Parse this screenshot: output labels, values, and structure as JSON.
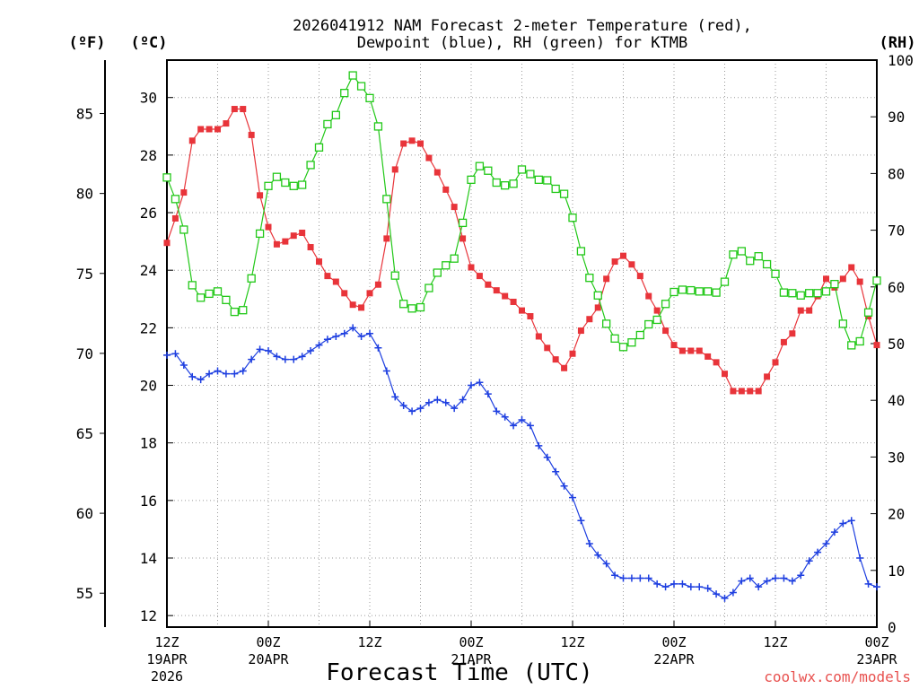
{
  "title_line1": "2026041912 NAM Forecast 2-meter Temperature (red),",
  "title_line2": "Dewpoint (blue), RH (green) for KTMB",
  "units": {
    "fahrenheit": "(ºF)",
    "celsius": "(ºC)",
    "rh": "(RH)"
  },
  "xlabel": "Forecast Time (UTC)",
  "credit": "coolwx.com/models",
  "colors": {
    "temperature": "#e8343a",
    "dewpoint": "#1e3fe0",
    "rh": "#22c818",
    "grid": "#9a9a9a"
  },
  "chart_data": {
    "type": "line",
    "x_unit": "hours since 2026-04-19 12Z",
    "x_range": [
      0,
      84
    ],
    "x_ticks": [
      {
        "x": 0,
        "time": "12Z",
        "date": "19APR",
        "year": "2026"
      },
      {
        "x": 12,
        "time": "00Z",
        "date": "20APR"
      },
      {
        "x": 24,
        "time": "12Z"
      },
      {
        "x": 36,
        "time": "00Z",
        "date": "21APR"
      },
      {
        "x": 48,
        "time": "12Z"
      },
      {
        "x": 60,
        "time": "00Z",
        "date": "22APR"
      },
      {
        "x": 72,
        "time": "12Z"
      },
      {
        "x": 84,
        "time": "00Z",
        "date": "23APR"
      }
    ],
    "y_celsius": {
      "range": [
        11.6,
        31.3
      ],
      "ticks": [
        12,
        14,
        16,
        18,
        20,
        22,
        24,
        26,
        28,
        30
      ]
    },
    "y_fahrenheit": {
      "ticks": [
        55,
        60,
        65,
        70,
        75,
        80,
        85
      ]
    },
    "y_rh": {
      "range": [
        0,
        100
      ],
      "ticks": [
        0,
        10,
        20,
        30,
        40,
        50,
        60,
        70,
        80,
        90,
        100
      ]
    },
    "grid": true,
    "series": [
      {
        "name": "Temperature",
        "color": "red",
        "axis": "celsius",
        "x": [
          0,
          1,
          2,
          3,
          4,
          5,
          6,
          7,
          8,
          9,
          10,
          11,
          12,
          13,
          14,
          15,
          16,
          17,
          18,
          19,
          20,
          21,
          22,
          23,
          24,
          25,
          26,
          27,
          28,
          29,
          30,
          31,
          32,
          33,
          34,
          35,
          36,
          37,
          38,
          39,
          40,
          41,
          42,
          43,
          44,
          45,
          46,
          47,
          48,
          49,
          50,
          51,
          52,
          53,
          54,
          55,
          56,
          57,
          58,
          59,
          60,
          61,
          62,
          63,
          64,
          65,
          66,
          67,
          68,
          69,
          70,
          71,
          72,
          73,
          74,
          75,
          76,
          77,
          78,
          79,
          80,
          81,
          82,
          83,
          84
        ],
        "values": [
          24.95,
          25.8,
          26.7,
          28.5,
          28.9,
          28.9,
          28.9,
          29.1,
          29.6,
          29.6,
          28.7,
          26.6,
          25.5,
          24.9,
          25.0,
          25.2,
          25.3,
          24.8,
          24.3,
          23.8,
          23.6,
          23.2,
          22.8,
          22.7,
          23.2,
          23.5,
          25.1,
          27.5,
          28.4,
          28.5,
          28.4,
          27.9,
          27.4,
          26.8,
          26.2,
          25.1,
          24.1,
          23.8,
          23.5,
          23.3,
          23.1,
          22.9,
          22.6,
          22.4,
          21.7,
          21.3,
          20.9,
          20.6,
          21.1,
          21.9,
          22.3,
          22.7,
          23.7,
          24.3,
          24.5,
          24.2,
          23.8,
          23.1,
          22.6,
          21.9,
          21.4,
          21.2,
          21.2,
          21.2,
          21.0,
          20.8,
          20.4,
          19.8,
          19.8,
          19.8,
          19.8,
          20.3,
          20.8,
          21.5,
          21.8,
          22.6,
          22.6,
          23.1,
          23.7,
          23.4,
          23.7,
          24.1,
          23.6,
          22.4,
          21.4
        ]
      },
      {
        "name": "Dewpoint",
        "color": "blue",
        "axis": "celsius",
        "x": [
          0,
          1,
          2,
          3,
          4,
          5,
          6,
          7,
          8,
          9,
          10,
          11,
          12,
          13,
          14,
          15,
          16,
          17,
          18,
          19,
          20,
          21,
          22,
          23,
          24,
          25,
          26,
          27,
          28,
          29,
          30,
          31,
          32,
          33,
          34,
          35,
          36,
          37,
          38,
          39,
          40,
          41,
          42,
          43,
          44,
          45,
          46,
          47,
          48,
          49,
          50,
          51,
          52,
          53,
          54,
          55,
          56,
          57,
          58,
          59,
          60,
          61,
          62,
          63,
          64,
          65,
          66,
          67,
          68,
          69,
          70,
          71,
          72,
          73,
          74,
          75,
          76,
          77,
          78,
          79,
          80,
          81,
          82,
          83,
          84
        ],
        "values": [
          21.05,
          21.1,
          20.7,
          20.3,
          20.2,
          20.4,
          20.5,
          20.4,
          20.4,
          20.5,
          20.9,
          21.25,
          21.2,
          21.0,
          20.9,
          20.9,
          21.0,
          21.2,
          21.4,
          21.6,
          21.7,
          21.8,
          22.0,
          21.7,
          21.8,
          21.3,
          20.5,
          19.6,
          19.3,
          19.1,
          19.2,
          19.4,
          19.5,
          19.4,
          19.2,
          19.5,
          20.0,
          20.1,
          19.7,
          19.1,
          18.9,
          18.6,
          18.8,
          18.6,
          17.9,
          17.5,
          17.0,
          16.5,
          16.1,
          15.3,
          14.5,
          14.1,
          13.8,
          13.4,
          13.3,
          13.3,
          13.3,
          13.3,
          13.1,
          13.0,
          13.1,
          13.1,
          13.0,
          13.0,
          12.95,
          12.75,
          12.6,
          12.8,
          13.2,
          13.3,
          13.0,
          13.2,
          13.3,
          13.3,
          13.2,
          13.4,
          13.9,
          14.2,
          14.5,
          14.9,
          15.2,
          15.3,
          14.0,
          13.1,
          13.0
        ]
      },
      {
        "name": "RH",
        "color": "green",
        "axis": "rh",
        "x": [
          0,
          1,
          2,
          3,
          4,
          5,
          6,
          7,
          8,
          9,
          10,
          11,
          12,
          13,
          14,
          15,
          16,
          17,
          18,
          19,
          20,
          21,
          22,
          23,
          24,
          25,
          26,
          27,
          28,
          29,
          30,
          31,
          32,
          33,
          34,
          35,
          36,
          37,
          38,
          39,
          40,
          41,
          42,
          43,
          44,
          45,
          46,
          47,
          48,
          49,
          50,
          51,
          52,
          53,
          54,
          55,
          56,
          57,
          58,
          59,
          60,
          61,
          62,
          63,
          64,
          65,
          66,
          67,
          68,
          69,
          70,
          71,
          72,
          73,
          74,
          75,
          76,
          77,
          78,
          79,
          80,
          81,
          82,
          83,
          84
        ],
        "values": [
          79.3,
          75.5,
          70.1,
          60.3,
          58.1,
          58.8,
          59.2,
          57.7,
          55.6,
          55.9,
          61.5,
          69.4,
          77.8,
          79.4,
          78.4,
          77.8,
          78.0,
          81.5,
          84.6,
          88.7,
          90.3,
          94.2,
          97.3,
          95.4,
          93.3,
          88.3,
          75.5,
          62.0,
          57.0,
          56.2,
          56.4,
          59.8,
          62.5,
          63.8,
          65.0,
          71.3,
          78.9,
          81.3,
          80.5,
          78.4,
          77.9,
          78.2,
          80.7,
          79.9,
          78.9,
          78.8,
          77.3,
          76.4,
          72.2,
          66.3,
          61.6,
          58.5,
          53.5,
          50.9,
          49.4,
          50.2,
          51.5,
          53.4,
          54.2,
          57.0,
          59.1,
          59.5,
          59.4,
          59.2,
          59.2,
          59.0,
          60.9,
          65.7,
          66.3,
          64.6,
          65.4,
          64.0,
          62.3,
          59.0,
          58.9,
          58.5,
          58.9,
          58.9,
          59.2,
          60.5,
          53.5,
          49.7,
          50.4,
          55.5,
          61.1
        ]
      }
    ]
  }
}
